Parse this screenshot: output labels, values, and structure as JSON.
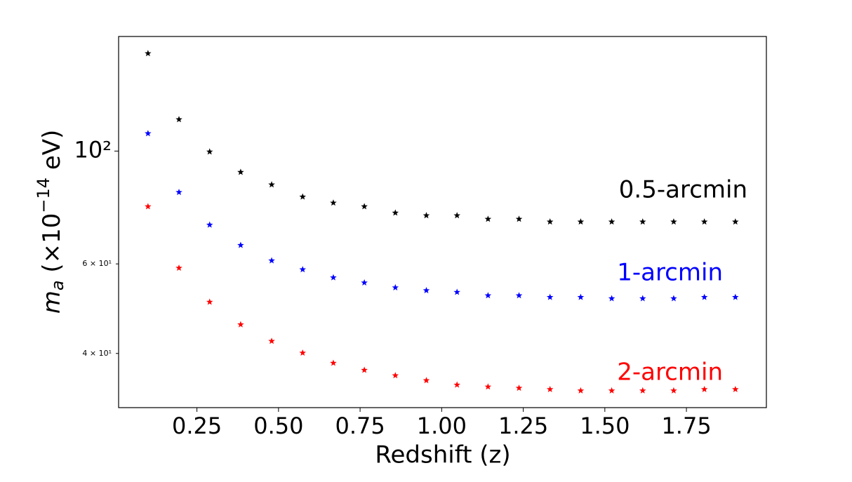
{
  "chart_data": {
    "type": "scatter",
    "x_label": "Redshift (z)",
    "y_label": {
      "symbol": "m",
      "subscript": "a",
      "text": " (×10",
      "exponent": "−14",
      "unit": " eV)"
    },
    "x": [
      0.1,
      0.195,
      0.289,
      0.384,
      0.479,
      0.574,
      0.668,
      0.763,
      0.858,
      0.953,
      1.047,
      1.142,
      1.237,
      1.332,
      1.426,
      1.521,
      1.616,
      1.711,
      1.805,
      1.9
    ],
    "series": [
      {
        "name": "0.5-arcmin",
        "color": "#000000",
        "values": [
          155.6,
          115.4,
          99.7,
          90.9,
          85.9,
          81.3,
          79.1,
          77.8,
          75.6,
          74.7,
          74.7,
          73.5,
          73.5,
          72.6,
          72.6,
          72.6,
          72.6,
          72.6,
          72.6,
          72.6
        ]
      },
      {
        "name": "1-arcmin",
        "color": "#0000ff",
        "values": [
          108.3,
          83.0,
          71.6,
          65.3,
          60.9,
          58.5,
          56.4,
          55.1,
          53.9,
          53.2,
          52.8,
          52.0,
          52.0,
          51.6,
          51.6,
          51.3,
          51.3,
          51.3,
          51.6,
          51.6
        ]
      },
      {
        "name": "2-arcmin",
        "color": "#ff0000",
        "values": [
          77.8,
          58.9,
          50.5,
          45.6,
          42.3,
          40.1,
          38.3,
          37.1,
          36.2,
          35.4,
          34.7,
          34.4,
          34.2,
          34.0,
          33.8,
          33.8,
          33.8,
          33.8,
          34.0,
          34.0
        ]
      }
    ],
    "xlim": [
      0.01,
      1.995
    ],
    "xticks": [
      0.25,
      {
        "value": 0.5,
        "label": "0.50"
      },
      0.75,
      {
        "value": 1.0,
        "label": "1.00"
      },
      1.25,
      {
        "value": 1.5,
        "label": "1.50"
      },
      1.75
    ],
    "ylim": [
      31.3,
      168
    ],
    "yticks": [
      {
        "value": 40,
        "label": "4 × 10¹"
      },
      {
        "value": 60,
        "label": "6 × 10¹"
      },
      {
        "value": 100,
        "label": "10²"
      }
    ],
    "log_y": true
  }
}
